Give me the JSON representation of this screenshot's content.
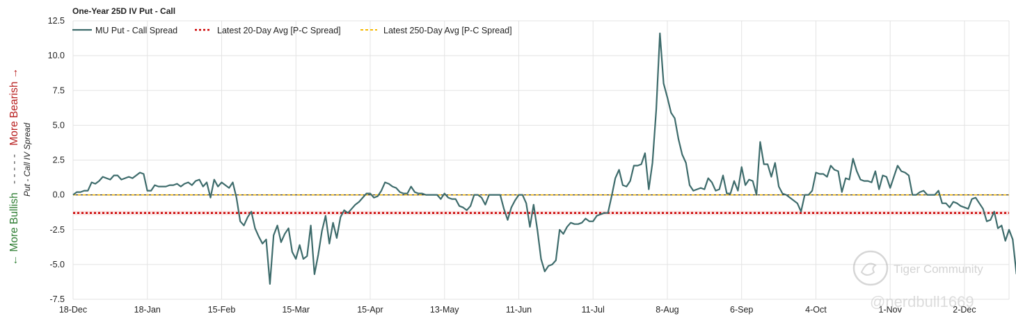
{
  "chart_data": {
    "type": "line",
    "title": "One-Year 25D IV Put - Call",
    "ylabel": "Put - Call IV Spread",
    "side_labels": {
      "bullish": "← More Bullish",
      "dashes": "- - - - -",
      "bearish": "More Bearish →"
    },
    "ylim": [
      -7.5,
      12.5
    ],
    "y_ticks": [
      12.5,
      10.0,
      7.5,
      5.0,
      2.5,
      0.0,
      -2.5,
      -5.0,
      -7.5
    ],
    "y_tick_labels": [
      "12.5",
      "10.0",
      "7.5",
      "5.0",
      "2.5",
      "0.0",
      "-2.5",
      "-5.0",
      "-7.5"
    ],
    "x_ticks": [
      {
        "label": "18-Dec",
        "index": 0
      },
      {
        "label": "18-Jan",
        "index": 20
      },
      {
        "label": "15-Feb",
        "index": 40
      },
      {
        "label": "15-Mar",
        "index": 60
      },
      {
        "label": "15-Apr",
        "index": 80
      },
      {
        "label": "13-May",
        "index": 100
      },
      {
        "label": "11-Jun",
        "index": 120
      },
      {
        "label": "11-Jul",
        "index": 140
      },
      {
        "label": "8-Aug",
        "index": 160
      },
      {
        "label": "6-Sep",
        "index": 180
      },
      {
        "label": "4-Oct",
        "index": 200
      },
      {
        "label": "1-Nov",
        "index": 220
      },
      {
        "label": "2-Dec",
        "index": 240
      }
    ],
    "x_range": [
      0,
      252
    ],
    "grid": true,
    "legend_position": "top-left",
    "series": [
      {
        "name": "MU Put - Call Spread",
        "color": "#3d6b6b",
        "style": "solid",
        "values": [
          0.0,
          0.2,
          0.2,
          0.3,
          0.3,
          0.9,
          0.8,
          1.0,
          1.3,
          1.2,
          1.1,
          1.4,
          1.4,
          1.1,
          1.2,
          1.3,
          1.2,
          1.4,
          1.6,
          1.5,
          0.3,
          0.3,
          0.7,
          0.6,
          0.6,
          0.6,
          0.7,
          0.7,
          0.8,
          0.6,
          0.8,
          0.9,
          0.7,
          1.0,
          1.1,
          0.6,
          0.9,
          -0.2,
          1.1,
          0.6,
          0.9,
          0.7,
          0.5,
          0.9,
          -0.2,
          -1.9,
          -2.2,
          -1.6,
          -1.2,
          -2.4,
          -3.0,
          -3.5,
          -3.2,
          -6.4,
          -2.9,
          -2.2,
          -3.4,
          -2.8,
          -2.4,
          -4.1,
          -4.6,
          -3.6,
          -4.6,
          -4.4,
          -2.2,
          -5.7,
          -4.3,
          -2.6,
          -1.5,
          -3.5,
          -2.0,
          -3.1,
          -1.6,
          -1.1,
          -1.3,
          -1.0,
          -0.7,
          -0.5,
          -0.2,
          0.1,
          0.1,
          -0.2,
          -0.1,
          0.3,
          0.9,
          0.8,
          0.6,
          0.5,
          0.2,
          0.1,
          0.1,
          0.6,
          0.2,
          0.1,
          0.1,
          0.0,
          0.0,
          0.0,
          0.0,
          -0.3,
          0.1,
          -0.2,
          -0.3,
          -0.3,
          -0.8,
          -0.9,
          -1.1,
          -0.8,
          0.0,
          0.0,
          -0.2,
          -0.7,
          0.0,
          0.0,
          0.0,
          0.0,
          -1.0,
          -1.8,
          -0.9,
          -0.4,
          0.0,
          0.0,
          -0.6,
          -2.3,
          -0.7,
          -2.5,
          -4.6,
          -5.5,
          -5.1,
          -5.0,
          -4.7,
          -2.5,
          -2.8,
          -2.3,
          -2.0,
          -2.1,
          -2.1,
          -2.0,
          -1.7,
          -1.9,
          -1.9,
          -1.5,
          -1.4,
          -1.3,
          -1.3,
          -0.1,
          1.2,
          1.8,
          0.7,
          0.6,
          1.0,
          2.1,
          2.1,
          2.2,
          3.0,
          0.4,
          2.3,
          6.1,
          11.6,
          8.0,
          7.0,
          5.9,
          5.5,
          4.0,
          2.9,
          2.3,
          0.7,
          0.3,
          0.4,
          0.5,
          0.4,
          1.2,
          0.9,
          0.3,
          0.4,
          1.4,
          0.1,
          0.1,
          1.0,
          0.3,
          2.0,
          0.7,
          1.1,
          1.0,
          0.0,
          3.8,
          2.2,
          2.2,
          1.3,
          2.3,
          0.6,
          0.1,
          0.0,
          -0.2,
          -0.4,
          -0.6,
          -1.2,
          0.0,
          0.0,
          0.3,
          1.6,
          1.5,
          1.5,
          1.3,
          2.1,
          1.8,
          1.7,
          0.2,
          1.2,
          1.1,
          2.6,
          1.7,
          1.1,
          1.0,
          1.0,
          0.9,
          1.7,
          0.4,
          1.4,
          1.3,
          0.5,
          1.3,
          2.1,
          1.7,
          1.6,
          1.4,
          0.0,
          0.0,
          0.2,
          0.3,
          0.0,
          0.0,
          0.0,
          0.3,
          -0.6,
          -0.6,
          -0.9,
          -0.5,
          -0.6,
          -0.8,
          -0.9,
          -1.0,
          -0.3,
          -0.2,
          -0.6,
          -1.0,
          -1.9,
          -1.8,
          -1.2,
          -2.4,
          -2.2,
          -3.3,
          -2.5,
          -3.2,
          -5.7
        ]
      },
      {
        "name": "Latest 20-Day Avg [P-C Spread]",
        "color": "#cc0000",
        "style": "dotted",
        "constant": -1.3
      },
      {
        "name": "Latest 250-Day Avg [P-C Spread]",
        "color": "#f5b800",
        "style": "dashed",
        "constant": 0.0
      }
    ]
  },
  "watermark": {
    "brand": "Tiger Community",
    "handle": "@nerdbull1669"
  }
}
